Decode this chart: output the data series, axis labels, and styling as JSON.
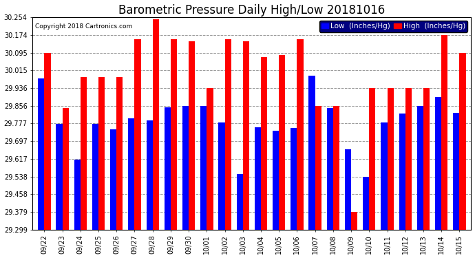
{
  "title": "Barometric Pressure Daily High/Low 20181016",
  "copyright": "Copyright 2018 Cartronics.com",
  "legend_low": "Low  (Inches/Hg)",
  "legend_high": "High  (Inches/Hg)",
  "dates": [
    "09/22",
    "09/23",
    "09/24",
    "09/25",
    "09/26",
    "09/27",
    "09/28",
    "09/29",
    "09/30",
    "10/01",
    "10/02",
    "10/03",
    "10/04",
    "10/05",
    "10/06",
    "10/07",
    "10/08",
    "10/09",
    "10/10",
    "10/11",
    "10/12",
    "10/13",
    "10/14",
    "10/15"
  ],
  "low": [
    29.98,
    29.775,
    29.615,
    29.775,
    29.75,
    29.8,
    29.79,
    29.85,
    29.855,
    29.856,
    29.78,
    29.55,
    29.76,
    29.745,
    29.755,
    29.99,
    29.845,
    29.66,
    29.538,
    29.78,
    29.82,
    29.856,
    29.895,
    29.825
  ],
  "high": [
    30.095,
    29.845,
    29.985,
    29.985,
    29.985,
    30.155,
    30.245,
    30.155,
    30.145,
    29.936,
    30.155,
    30.145,
    30.075,
    30.085,
    30.155,
    29.856,
    29.856,
    29.379,
    29.936,
    29.936,
    29.936,
    29.936,
    30.174,
    30.095
  ],
  "ylim_min": 29.299,
  "ylim_max": 30.254,
  "yticks": [
    29.299,
    29.379,
    29.458,
    29.538,
    29.617,
    29.697,
    29.777,
    29.856,
    29.936,
    30.015,
    30.095,
    30.174,
    30.254
  ],
  "bar_color_low": "#0000ff",
  "bar_color_high": "#ff0000",
  "bg_color": "#ffffff",
  "grid_color": "#999999",
  "title_fontsize": 12,
  "tick_fontsize": 7,
  "legend_fontsize": 7.5,
  "bar_width": 0.35
}
